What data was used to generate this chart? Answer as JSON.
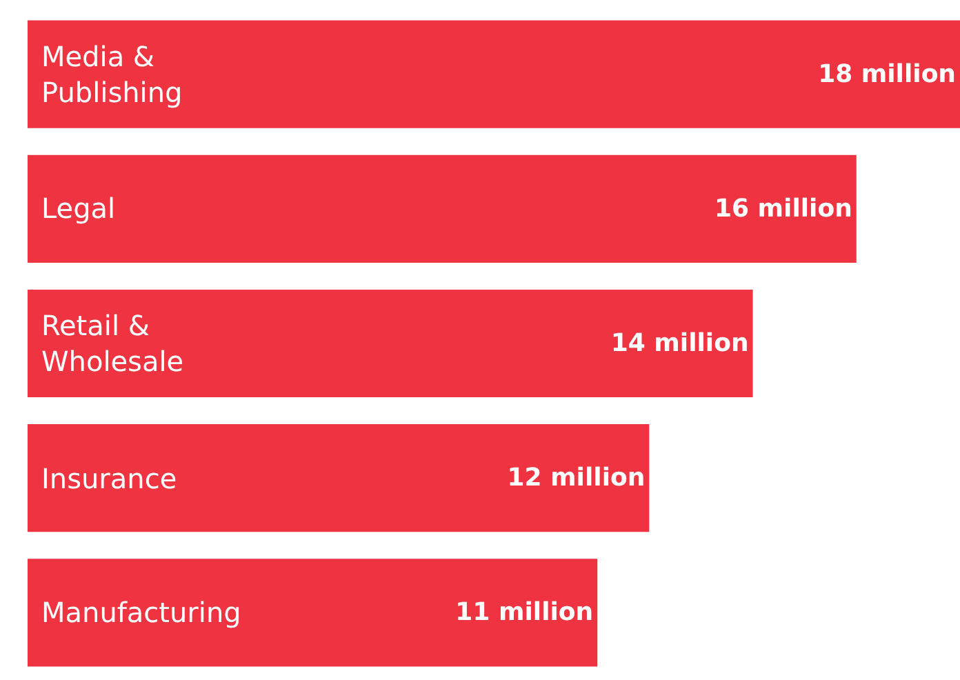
{
  "chart_data": {
    "type": "bar",
    "orientation": "horizontal",
    "categories": [
      "Media & Publishing",
      "Legal",
      "Retail & Wholesale",
      "Insurance",
      "Manufacturing"
    ],
    "values": [
      18,
      16,
      14,
      12,
      11
    ],
    "value_labels": [
      "18 million",
      "16 million",
      "14 million",
      "12 million",
      "11 million"
    ],
    "color": "#ef3340",
    "legend": false
  }
}
